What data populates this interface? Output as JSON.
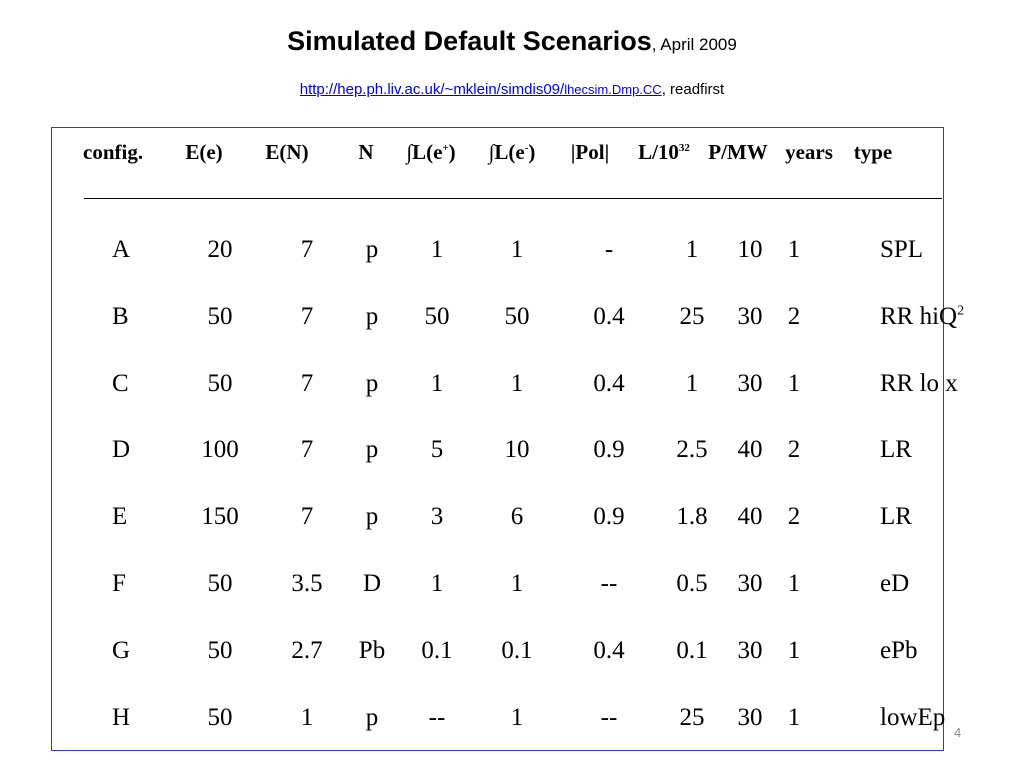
{
  "title": {
    "main": "Simulated Default Scenarios",
    "date": ", April 2009"
  },
  "subtitle": {
    "link_text": "http://hep.ph.liv.ac.uk/~mklein/simdis09/",
    "link_small": "lhecsim.Dmp.CC",
    "suffix": ", readfirst"
  },
  "table": {
    "headers": {
      "config": "config.",
      "ee": "E(e)",
      "en": "E(N)",
      "n": "N",
      "lep_prefix": "∫L(e",
      "lep_sup": "+",
      "lep_suffix": ")",
      "lem_prefix": "∫L(e",
      "lem_sup": "-",
      "lem_suffix": ")",
      "pol": "|Pol|",
      "lum_prefix": "L/10",
      "lum_sup": "32",
      "pmw": "P/MW",
      "years": "years",
      "type": "type"
    },
    "rows": [
      {
        "config": "A",
        "ee": "20",
        "en": "7",
        "n": "p",
        "lep": "1",
        "lem": "1",
        "pol": "-",
        "lum": "1",
        "pmw": "10",
        "years": "1",
        "type": "SPL",
        "type_sup": ""
      },
      {
        "config": "B",
        "ee": "50",
        "en": "7",
        "n": "p",
        "lep": "50",
        "lem": "50",
        "pol": "0.4",
        "lum": "25",
        "pmw": "30",
        "years": "2",
        "type": "RR hiQ",
        "type_sup": "2"
      },
      {
        "config": "C",
        "ee": "50",
        "en": "7",
        "n": "p",
        "lep": "1",
        "lem": "1",
        "pol": "0.4",
        "lum": "1",
        "pmw": "30",
        "years": "1",
        "type": "RR lo x",
        "type_sup": ""
      },
      {
        "config": "D",
        "ee": "100",
        "en": "7",
        "n": "p",
        "lep": "5",
        "lem": "10",
        "pol": "0.9",
        "lum": "2.5",
        "pmw": "40",
        "years": "2",
        "type": "LR",
        "type_sup": ""
      },
      {
        "config": "E",
        "ee": "150",
        "en": "7",
        "n": "p",
        "lep": "3",
        "lem": "6",
        "pol": "0.9",
        "lum": "1.8",
        "pmw": "40",
        "years": "2",
        "type": "LR",
        "type_sup": ""
      },
      {
        "config": "F",
        "ee": "50",
        "en": "3.5",
        "n": "D",
        "lep": "1",
        "lem": "1",
        "pol": "--",
        "lum": "0.5",
        "pmw": "30",
        "years": "1",
        "type": "eD",
        "type_sup": ""
      },
      {
        "config": "G",
        "ee": "50",
        "en": "2.7",
        "n": "Pb",
        "lep": "0.1",
        "lem": "0.1",
        "pol": "0.4",
        "lum": "0.1",
        "pmw": "30",
        "years": "1",
        "type": "ePb",
        "type_sup": ""
      },
      {
        "config": "H",
        "ee": "50",
        "en": "1",
        "n": "p",
        "lep": "--",
        "lem": "1",
        "pol": "--",
        "lum": "25",
        "pmw": "30",
        "years": "1",
        "type": "lowEp",
        "type_sup": ""
      }
    ]
  },
  "page_number": "4"
}
